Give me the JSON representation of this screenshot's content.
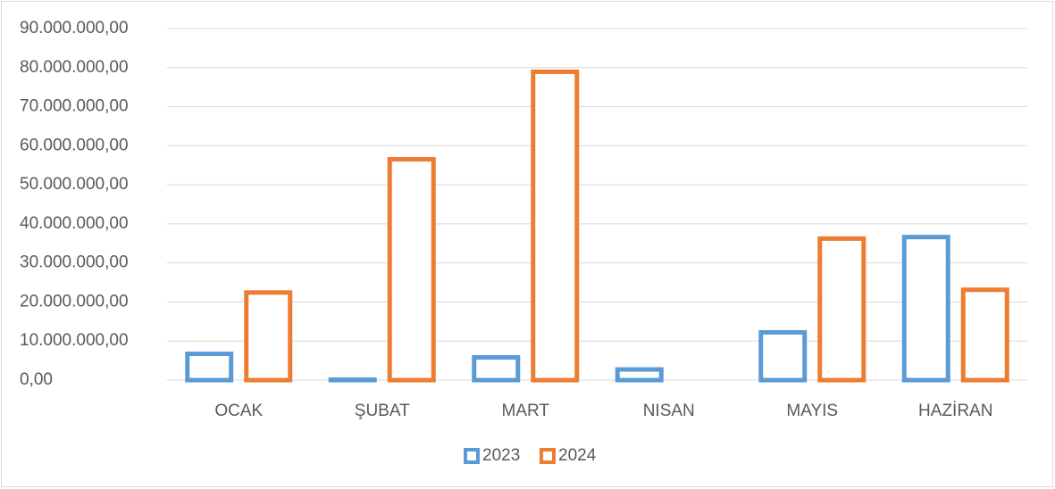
{
  "chart_data": {
    "type": "bar",
    "categories": [
      "OCAK",
      "ŞUBAT",
      "MART",
      "NISAN",
      "MAYIS",
      "HAZİRAN"
    ],
    "series": [
      {
        "name": "2023",
        "color": "#5b9bd5",
        "values": [
          7300000,
          700000,
          6400000,
          3300000,
          12800000,
          37200000
        ]
      },
      {
        "name": "2024",
        "color": "#ed7d31",
        "values": [
          23000000,
          57100000,
          79500000,
          null,
          36800000,
          23700000
        ]
      }
    ],
    "ylim": [
      0,
      90000000
    ],
    "yticks": [
      {
        "value": 0,
        "label": "0,00"
      },
      {
        "value": 10000000,
        "label": "10.000.000,00"
      },
      {
        "value": 20000000,
        "label": "20.000.000,00"
      },
      {
        "value": 30000000,
        "label": "30.000.000,00"
      },
      {
        "value": 40000000,
        "label": "40.000.000,00"
      },
      {
        "value": 50000000,
        "label": "50.000.000,00"
      },
      {
        "value": 60000000,
        "label": "60.000.000,00"
      },
      {
        "value": 70000000,
        "label": "70.000.000,00"
      },
      {
        "value": 80000000,
        "label": "80.000.000,00"
      },
      {
        "value": 90000000,
        "label": "90.000.000,00"
      }
    ],
    "grid": true,
    "legend": "bottom"
  }
}
